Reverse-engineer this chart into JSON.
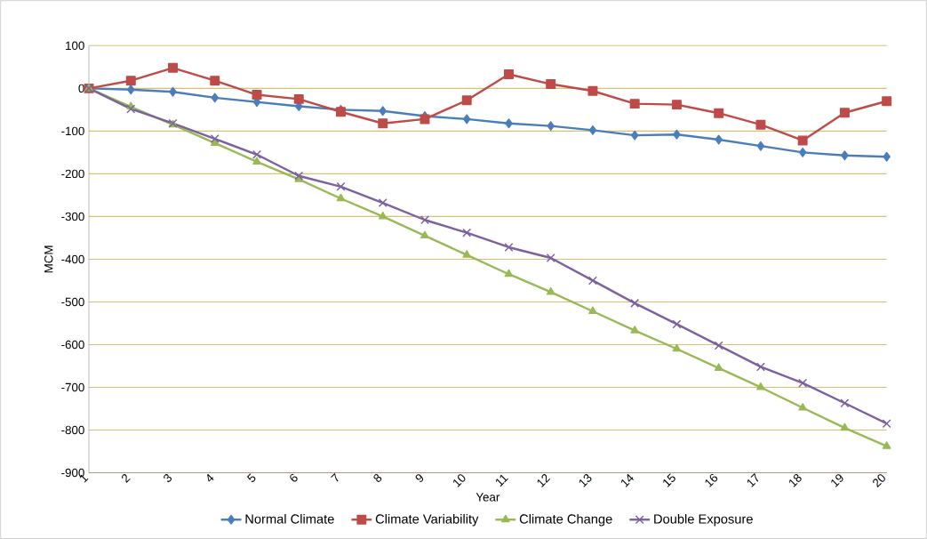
{
  "chart_data": {
    "type": "line",
    "xlabel": "Year",
    "ylabel": "MCM",
    "categories": [
      "1",
      "2",
      "3",
      "4",
      "5",
      "6",
      "7",
      "8",
      "9",
      "10",
      "11",
      "12",
      "13",
      "14",
      "15",
      "16",
      "17",
      "18",
      "19",
      "20"
    ],
    "series": [
      {
        "name": "Normal Climate",
        "color": "#4a7ebb",
        "marker": "diamond",
        "values": [
          0,
          -3,
          -8,
          -22,
          -32,
          -42,
          -50,
          -53,
          -65,
          -72,
          -82,
          -88,
          -98,
          -110,
          -108,
          -120,
          -135,
          -150,
          -157,
          -160
        ]
      },
      {
        "name": "Climate Variability",
        "color": "#be4b48",
        "marker": "square",
        "values": [
          0,
          18,
          48,
          18,
          -15,
          -25,
          -55,
          -82,
          -72,
          -28,
          33,
          10,
          -6,
          -36,
          -38,
          -58,
          -85,
          -122,
          -57,
          -30
        ]
      },
      {
        "name": "Climate Change",
        "color": "#98b954",
        "marker": "triangle",
        "values": [
          0,
          -43,
          -85,
          -128,
          -172,
          -213,
          -258,
          -300,
          -345,
          -390,
          -435,
          -477,
          -522,
          -567,
          -610,
          -655,
          -700,
          -748,
          -795,
          -838
        ]
      },
      {
        "name": "Double Exposure",
        "color": "#7d60a0",
        "marker": "cross",
        "values": [
          0,
          -48,
          -82,
          -118,
          -155,
          -205,
          -230,
          -268,
          -308,
          -338,
          -372,
          -397,
          -450,
          -503,
          -552,
          -602,
          -652,
          -690,
          -737,
          -785
        ]
      }
    ],
    "ylim": [
      -900,
      100
    ],
    "yticks": [
      -900,
      -800,
      -700,
      -600,
      -500,
      -400,
      -300,
      -200,
      -100,
      0,
      100
    ],
    "grid": "y",
    "legend": "bottom"
  }
}
